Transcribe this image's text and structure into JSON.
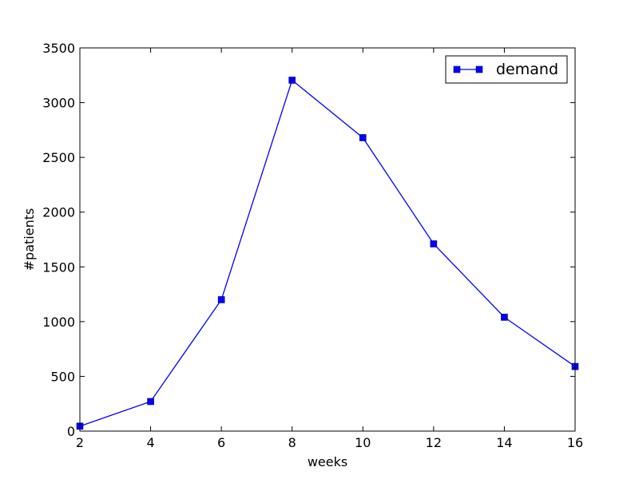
{
  "chart_data": {
    "type": "line",
    "xlabel": "weeks",
    "ylabel": "#patients",
    "xlim": [
      2,
      16
    ],
    "ylim": [
      0,
      3500
    ],
    "xticks": [
      2,
      4,
      6,
      8,
      10,
      12,
      14,
      16
    ],
    "yticks": [
      0,
      500,
      1000,
      1500,
      2000,
      2500,
      3000,
      3500
    ],
    "grid": false,
    "legend_position": "top-right",
    "series": [
      {
        "name": "demand",
        "color": "#0000ff",
        "marker": "square",
        "x": [
          2,
          4,
          6,
          8,
          10,
          12,
          14,
          16
        ],
        "y": [
          45,
          270,
          1200,
          3205,
          2680,
          1710,
          1040,
          590
        ]
      }
    ]
  }
}
